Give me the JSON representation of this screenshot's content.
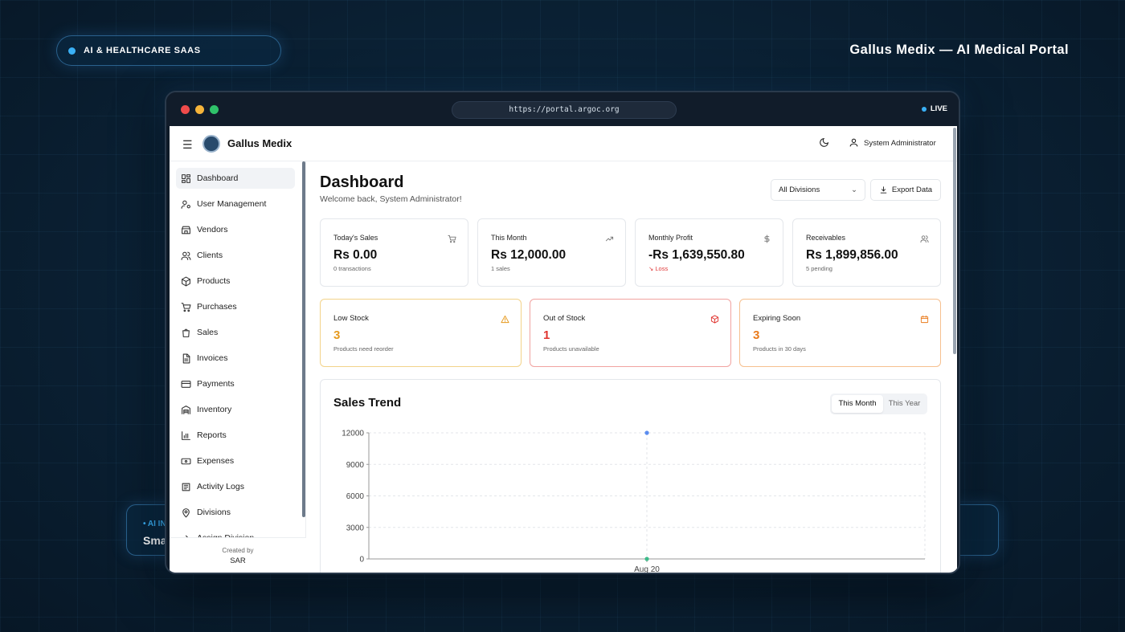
{
  "slide": {
    "tag": "AI & HEALTHCARE SAAS",
    "title": "Gallus Medix — AI Medical Portal",
    "left_card": {
      "kicker": "• AI IN",
      "value": "Smar"
    }
  },
  "browser": {
    "url": "https://portal.argoc.org",
    "live": "LIVE",
    "traffic_colors": [
      "#ef4b4b",
      "#f5b43a",
      "#2fc26a"
    ]
  },
  "appbar": {
    "brand": "Gallus Medix",
    "user": "System Administrator"
  },
  "sidebar": {
    "items": [
      {
        "label": "Dashboard",
        "icon": "dashboard-icon",
        "active": true
      },
      {
        "label": "User Management",
        "icon": "user-cog-icon"
      },
      {
        "label": "Vendors",
        "icon": "store-icon"
      },
      {
        "label": "Clients",
        "icon": "users-icon"
      },
      {
        "label": "Products",
        "icon": "box-icon"
      },
      {
        "label": "Purchases",
        "icon": "cart-icon"
      },
      {
        "label": "Sales",
        "icon": "bag-icon"
      },
      {
        "label": "Invoices",
        "icon": "file-icon"
      },
      {
        "label": "Payments",
        "icon": "card-icon"
      },
      {
        "label": "Inventory",
        "icon": "warehouse-icon"
      },
      {
        "label": "Reports",
        "icon": "bar-chart-icon"
      },
      {
        "label": "Expenses",
        "icon": "banknote-icon"
      },
      {
        "label": "Activity Logs",
        "icon": "log-icon"
      },
      {
        "label": "Divisions",
        "icon": "map-pin-icon"
      },
      {
        "label": "Assign Division",
        "icon": "assign-icon"
      }
    ],
    "footer_caption": "Created by",
    "footer_name": "SAR"
  },
  "main": {
    "title": "Dashboard",
    "welcome": "Welcome back, System Administrator!",
    "division_select": "All Divisions",
    "export_label": "Export Data"
  },
  "stats": [
    {
      "label": "Today's Sales",
      "value": "Rs 0.00",
      "sub": "0 transactions",
      "icon": "cart-icon"
    },
    {
      "label": "This Month",
      "value": "Rs 12,000.00",
      "sub": "1 sales",
      "icon": "trending-up-icon"
    },
    {
      "label": "Monthly Profit",
      "value": "-Rs 1,639,550.80",
      "sub": "Loss",
      "icon": "dollar-icon"
    },
    {
      "label": "Receivables",
      "value": "Rs 1,899,856.00",
      "sub": "5 pending",
      "icon": "users-icon"
    }
  ],
  "alerts": [
    {
      "label": "Low Stock",
      "value": "3",
      "sub": "Products need reorder",
      "color": "#e69a1f",
      "border": "#f3d38a"
    },
    {
      "label": "Out of Stock",
      "value": "1",
      "sub": "Products unavailable",
      "color": "#e0342f",
      "border": "#f1a3a0"
    },
    {
      "label": "Expiring Soon",
      "value": "3",
      "sub": "Products in 30 days",
      "color": "#ea7a1a",
      "border": "#f6c08f"
    }
  ],
  "chart": {
    "title": "Sales Trend",
    "tab_month": "This Month",
    "tab_year": "This Year"
  },
  "chart_data": {
    "type": "line",
    "title": "Sales Trend",
    "categories": [
      "Aug 20"
    ],
    "series": [
      {
        "values": [
          12000
        ],
        "color": "#5b8def"
      },
      {
        "values": [
          0
        ],
        "color": "#3dbb8a"
      }
    ],
    "yticks": [
      0,
      3000,
      6000,
      9000,
      12000
    ],
    "ylim": [
      0,
      12000
    ],
    "grid": true
  }
}
